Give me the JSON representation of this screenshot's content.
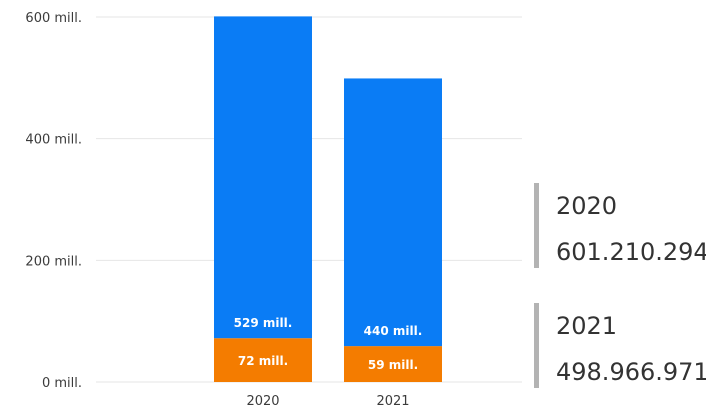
{
  "chart_data": {
    "type": "bar",
    "stacked": true,
    "categories": [
      "2020",
      "2021"
    ],
    "series": [
      {
        "values": [
          72000000,
          59000000
        ],
        "labels": [
          "72 mill.",
          "59 mill."
        ],
        "color": "#f47c00"
      },
      {
        "values": [
          529000000,
          440000000
        ],
        "labels": [
          "529 mill.",
          "440 mill."
        ],
        "color": "#0a7cf5"
      }
    ],
    "ylim": [
      0,
      600000000
    ],
    "yticks": [
      {
        "value": 0,
        "label": "0 mill."
      },
      {
        "value": 200000000,
        "label": "200 mill."
      },
      {
        "value": 400000000,
        "label": "400 mill."
      },
      {
        "value": 600000000,
        "label": "600 mill."
      }
    ],
    "grid": true,
    "totals": [
      {
        "year": "2020",
        "value": "601.210.294"
      },
      {
        "year": "2021",
        "value": "498.966.971"
      }
    ]
  },
  "colors": {
    "grid": "#e6e6e6",
    "axis_text": "#3b3b3b",
    "card_bar": "#b3b3b3"
  }
}
